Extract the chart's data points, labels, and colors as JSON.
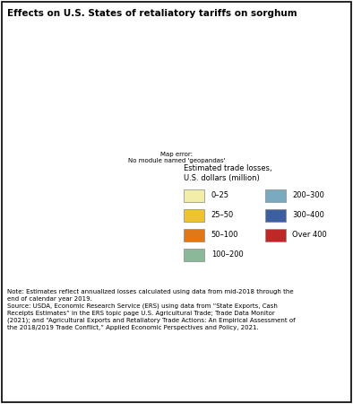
{
  "title": "Effects on U.S. States of retaliatory tariffs on sorghum",
  "legend_title": "Estimated trade losses,\nU.S. dollars (million)",
  "legend_items": [
    {
      "label": "0–25",
      "color": "#F2EDA8"
    },
    {
      "label": "25–50",
      "color": "#EEC230"
    },
    {
      "label": "50–100",
      "color": "#E07818"
    },
    {
      "label": "100–200",
      "color": "#8AB898"
    },
    {
      "label": "200–300",
      "color": "#7AAAC0"
    },
    {
      "label": "300–400",
      "color": "#3B5FA0"
    },
    {
      "label": "Over 400",
      "color": "#C02828"
    }
  ],
  "state_colors": {
    "Alabama": "#F2EDA8",
    "Alaska": "#F2EDA8",
    "Arizona": "#F2EDA8",
    "Arkansas": "#F2EDA8",
    "California": "#F2EDA8",
    "Colorado": "#EEC230",
    "Connecticut": "#F2EDA8",
    "Delaware": "#F2EDA8",
    "Florida": "#F2EDA8",
    "Georgia": "#F2EDA8",
    "Hawaii": "#F2EDA8",
    "Idaho": "#F2EDA8",
    "Illinois": "#F2EDA8",
    "Indiana": "#F2EDA8",
    "Iowa": "#F2EDA8",
    "Kansas": "#C02828",
    "Kentucky": "#F2EDA8",
    "Louisiana": "#F2EDA8",
    "Maine": "#F2EDA8",
    "Maryland": "#F2EDA8",
    "Massachusetts": "#F2EDA8",
    "Michigan": "#F2EDA8",
    "Minnesota": "#F2EDA8",
    "Mississippi": "#F2EDA8",
    "Missouri": "#F2EDA8",
    "Montana": "#F2EDA8",
    "Nebraska": "#EEC230",
    "Nevada": "#F2EDA8",
    "New Hampshire": "#F2EDA8",
    "New Jersey": "#F2EDA8",
    "New Mexico": "#F2EDA8",
    "New York": "#F2EDA8",
    "North Carolina": "#F2EDA8",
    "North Dakota": "#F2EDA8",
    "Ohio": "#F2EDA8",
    "Oklahoma": "#E07818",
    "Oregon": "#F2EDA8",
    "Pennsylvania": "#F2EDA8",
    "Rhode Island": "#F2EDA8",
    "South Carolina": "#F2EDA8",
    "South Dakota": "#EEC230",
    "Tennessee": "#F2EDA8",
    "Texas": "#7AAAC0",
    "Utah": "#F2EDA8",
    "Vermont": "#F2EDA8",
    "Virginia": "#F2EDA8",
    "Washington": "#F2EDA8",
    "West Virginia": "#F2EDA8",
    "Wisconsin": "#F2EDA8",
    "Wyoming": "#F2EDA8"
  },
  "note": "Note: Estimates reflect annualized losses calculated using data from mid-2018 through the\nend of calendar year 2019.",
  "source": "Source: USDA, Economic Research Service (ERS) using data from “State Exports, Cash\nReceipts Estimates” in the ERS topic page U.S. Agricultural Trade; Trade Data Monitor\n(2021); and “Agricultural Exports and Retaliatory Trade Actions: An Empirical Assessment of\nthe 2018/2019 Trade Conflict,” Applied Economic Perspectives and Policy, 2021.",
  "background_color": "#FFFFFF",
  "map_edge_color": "#555555",
  "figsize": [
    3.94,
    4.5
  ],
  "dpi": 100
}
